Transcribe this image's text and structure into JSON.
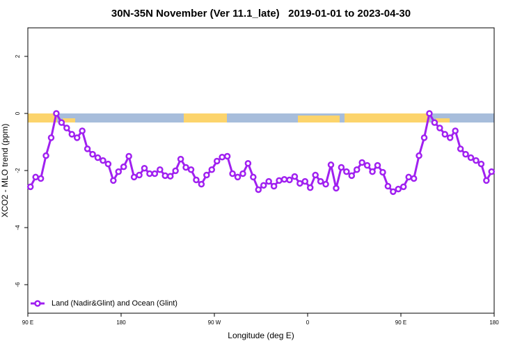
{
  "chart_data": {
    "type": "line",
    "title": "30N-35N November (Ver 11.1_late)   2019-01-01 to 2023-04-30",
    "x_label": "Longitude (deg E)",
    "y_label": "XCO2 - MLO trend (ppm)",
    "xlim": [
      90,
      540
    ],
    "xticks": [
      {
        "value": 90,
        "label": "90 E"
      },
      {
        "value": 180,
        "label": "180"
      },
      {
        "value": 270,
        "label": "90 W"
      },
      {
        "value": 360,
        "label": "0"
      },
      {
        "value": 450,
        "label": "90 E"
      },
      {
        "value": 540,
        "label": "180"
      }
    ],
    "ylim": [
      -7,
      3
    ],
    "yticks": [
      -6,
      -4,
      -2,
      0,
      2
    ],
    "legend": "bottom-left",
    "x": [
      92.5,
      97.5,
      102.5,
      107.5,
      112.5,
      117.5,
      122.5,
      127.5,
      132.5,
      137.5,
      142.5,
      147.5,
      152.5,
      157.5,
      162.5,
      167.5,
      172.5,
      177.5,
      182.5,
      187.5,
      192.5,
      197.5,
      202.5,
      207.5,
      212.5,
      217.5,
      222.5,
      227.5,
      232.5,
      237.5,
      242.5,
      247.5,
      252.5,
      257.5,
      262.5,
      267.5,
      272.5,
      277.5,
      282.5,
      287.5,
      292.5,
      297.5,
      302.5,
      307.5,
      312.5,
      317.5,
      322.5,
      327.5,
      332.5,
      337.5,
      342.5,
      347.5,
      352.5,
      357.5,
      362.5,
      367.5,
      372.5,
      377.5,
      382.5,
      387.5,
      392.5,
      397.5,
      402.5,
      407.5,
      412.5,
      417.5,
      422.5,
      427.5,
      432.5,
      437.5,
      442.5,
      447.5,
      452.5,
      457.5,
      462.5,
      467.5,
      472.5,
      477.5,
      482.5,
      487.5,
      492.5,
      497.5,
      502.5,
      507.5,
      512.5,
      517.5,
      522.5,
      527.5,
      532.5,
      537.5
    ],
    "series": [
      {
        "name": "Land (Nadir&Glint) and Ocean (Glint)",
        "color": "#a020f0",
        "values": [
          -2.57,
          -2.23,
          -2.28,
          -1.48,
          -0.85,
          0,
          -0.32,
          -0.51,
          -0.73,
          -0.85,
          -0.61,
          -1.24,
          -1.43,
          -1.55,
          -1.65,
          -1.77,
          -2.35,
          -2.04,
          -1.87,
          -1.5,
          -2.23,
          -2.16,
          -1.92,
          -2.11,
          -2.11,
          -1.97,
          -2.18,
          -2.2,
          -2.01,
          -1.6,
          -1.89,
          -1.97,
          -2.33,
          -2.48,
          -2.16,
          -1.97,
          -1.67,
          -1.53,
          -1.5,
          -2.11,
          -2.23,
          -2.11,
          -1.75,
          -2.23,
          -2.67,
          -2.52,
          -2.38,
          -2.55,
          -2.35,
          -2.31,
          -2.33,
          -2.21,
          -2.45,
          -2.38,
          -2.6,
          -2.16,
          -2.38,
          -2.48,
          -1.8,
          -2.62,
          -1.89,
          -2.04,
          -2.18,
          -1.97,
          -1.72,
          -1.82,
          -2.04,
          -1.82,
          -2.06,
          -2.55,
          -2.74,
          -2.65,
          -2.57,
          -2.23,
          -2.28,
          -1.48,
          -0.85,
          0,
          -0.32,
          -0.51,
          -0.73,
          -0.85,
          -0.61,
          -1.24,
          -1.43,
          -1.55,
          -1.65,
          -1.77,
          -2.35,
          -2.04
        ]
      }
    ]
  }
}
